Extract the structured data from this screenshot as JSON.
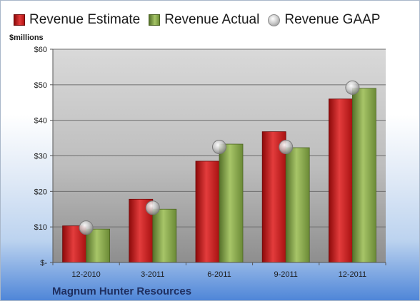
{
  "legend": {
    "estimate_label": "Revenue Estimate",
    "actual_label": "Revenue Actual",
    "gaap_label": "Revenue GAAP"
  },
  "unit_label": "$millions",
  "company": "Magnum Hunter Resources",
  "colors": {
    "estimate": "#c81f1f",
    "actual": "#8aaa4d",
    "gaap": "#b8b8b8",
    "plot_bg_top": "#d9d9d9",
    "plot_bg_bottom": "#8e8e8e"
  },
  "chart_data": {
    "type": "bar",
    "categories": [
      "12-2010",
      "3-2011",
      "6-2011",
      "9-2011",
      "12-2011"
    ],
    "series": [
      {
        "name": "Revenue Estimate",
        "values": [
          10.3,
          17.8,
          28.5,
          36.8,
          46.0
        ]
      },
      {
        "name": "Revenue Actual",
        "values": [
          9.4,
          15.0,
          33.3,
          32.3,
          49.0
        ]
      },
      {
        "name": "Revenue GAAP",
        "marker": "circle",
        "values": [
          9.8,
          15.4,
          32.5,
          32.5,
          49.2
        ]
      }
    ],
    "ylim": [
      0,
      60
    ],
    "yticks": [
      0,
      10,
      20,
      30,
      40,
      50,
      60
    ],
    "ytick_labels": [
      "$-",
      "$10",
      "$20",
      "$30",
      "$40",
      "$50",
      "$60"
    ],
    "grid": true,
    "legend_position": "top"
  }
}
